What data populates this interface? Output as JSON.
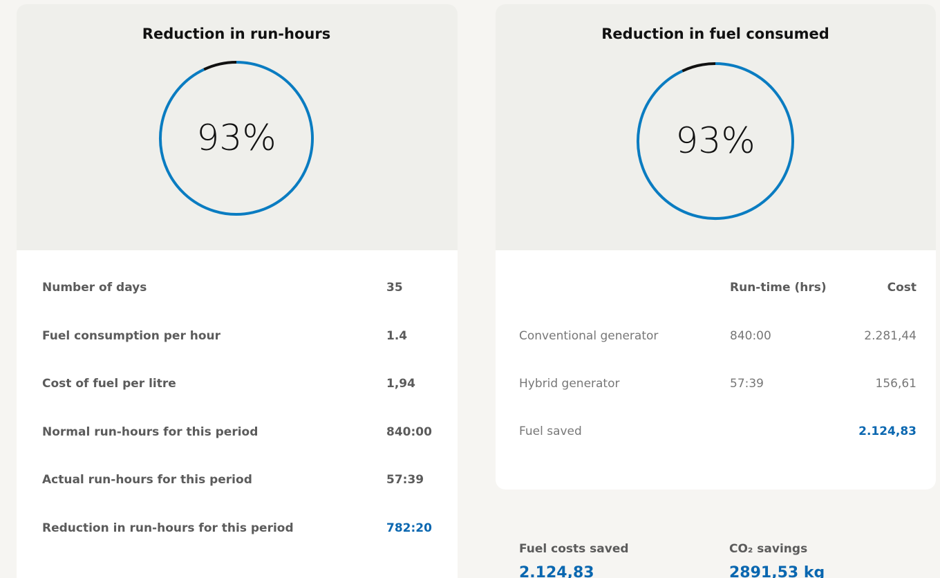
{
  "left": {
    "title": "Reduction in run-hours",
    "gauge": {
      "value": 93,
      "label": "93%"
    },
    "rows": [
      {
        "label": "Number of days",
        "value": "35"
      },
      {
        "label": "Fuel consumption per hour",
        "value": "1.4"
      },
      {
        "label": "Cost of fuel per litre",
        "value": "1,94"
      },
      {
        "label": "Normal run-hours for this period",
        "value": "840:00"
      },
      {
        "label": "Actual run-hours for this period",
        "value": "57:39"
      },
      {
        "label": "Reduction in run-hours for this period",
        "value": "782:20"
      }
    ]
  },
  "right": {
    "title": "Reduction in fuel consumed",
    "gauge": {
      "value": 93,
      "label": "93%"
    },
    "table": {
      "header": [
        "Run-time (hrs)",
        "Cost"
      ],
      "rows": [
        {
          "label": "Conventional generator",
          "runtime": "840:00",
          "cost": "2.281,44"
        },
        {
          "label": "Hybrid generator",
          "runtime": "57:39",
          "cost": "156,61"
        },
        {
          "label": "Fuel saved",
          "cost": "2.124,83"
        }
      ]
    }
  },
  "summary": [
    {
      "label": "Fuel costs saved",
      "value": "2.124,83"
    },
    {
      "label": "CO₂ savings",
      "value": "2891,53 kg"
    }
  ]
}
